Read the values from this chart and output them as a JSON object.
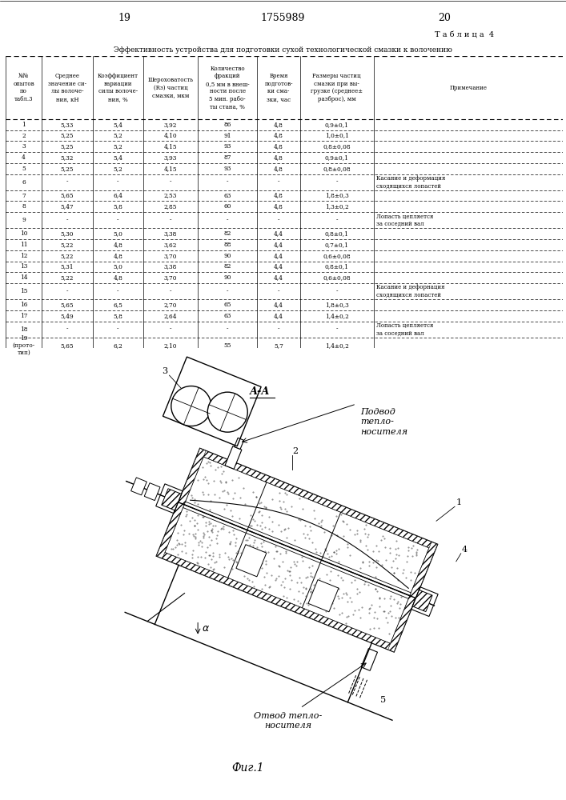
{
  "page_left": "19",
  "page_center": "1755989",
  "page_right": "20",
  "table_label": "Т а б л и ц а  4",
  "table_title": "Эффективность устройства для подготовки сухой технологической смазки к волочению",
  "col_headers": [
    "№№\nопытов\nпо\nтабл.3",
    "Среднее\nзначение си-\nлы волоче-\nния, кН",
    "Коэффициент\nвариации\nсилы волоче-\nния, %",
    "Шероховатость\n(Rз) частиц\nсмазки, мкм",
    "Количество\nфракций\n0,5 мм в внеш-\nности после\n5 мин. рабо-\nты стана, %",
    "Время\nподготов-\nки сма-\nзки, час",
    "Размеры частиц\nсмазки при вы-\nгрузке (среднее±\nразброс), мм",
    "Примечание"
  ],
  "rows": [
    [
      "1",
      "5,33",
      "5,4",
      "3,92",
      "86",
      "4,8",
      "0,9±0,1",
      ""
    ],
    [
      "2",
      "5,25",
      "5,2",
      "4,10",
      "91",
      "4,8",
      "1,0±0,1",
      ""
    ],
    [
      "3",
      "5,25",
      "5,2",
      "4,15",
      "93",
      "4,8",
      "0,8±0,08",
      ""
    ],
    [
      "4",
      "5,32",
      "5,4",
      "3,93",
      "87",
      "4,8",
      "0,9±0,1",
      ""
    ],
    [
      "5",
      "5,25",
      "5,2",
      "4,15",
      "93",
      "4,8",
      "0,8±0,08",
      ""
    ],
    [
      "6",
      "-",
      "-",
      "-",
      "-",
      "-",
      "-",
      "Касание и деформация\nсходящихся лопастей"
    ],
    [
      "7",
      "5,65",
      "6,4",
      "2,53",
      "63",
      "4,8",
      "1,8±0,3",
      ""
    ],
    [
      "8",
      "5,47",
      "5,8",
      "2,85",
      "60",
      "4,8",
      "1,3±0,2",
      ""
    ],
    [
      "9",
      "-",
      "-",
      "-",
      "-",
      "-",
      "-",
      "Лопасть цепляется\nза соседний вал"
    ],
    [
      "10",
      "5,30",
      "5,0",
      "3,38",
      "82",
      "4,4",
      "0,8±0,1",
      ""
    ],
    [
      "11",
      "5,22",
      "4,8",
      "3,62",
      "88",
      "4,4",
      "0,7±0,1",
      ""
    ],
    [
      "12",
      "5,22",
      "4,8",
      "3,70",
      "90",
      "4,4",
      "0,6±0,08",
      ""
    ],
    [
      "13",
      "5,31",
      "5,0",
      "3,38",
      "82",
      "4,4",
      "0,8±0,1",
      ""
    ],
    [
      "14",
      "5,22",
      "4,8",
      "3,70",
      "90",
      "4,4",
      "0,6±0,08",
      ""
    ],
    [
      "15",
      "-",
      "-",
      "-",
      "-",
      "-",
      "-",
      "Касание и дефорнация\nсходящихся лопастей"
    ],
    [
      "16",
      "5,65",
      "6,5",
      "2,70",
      "65",
      "4,4",
      "1,8±0,3",
      ""
    ],
    [
      "17",
      "5,49",
      "5,8",
      "2,64",
      "63",
      "4,4",
      "1,4±0,2",
      ""
    ],
    [
      "18",
      "-",
      "-",
      "-",
      "-",
      "-",
      "-",
      "Лопасть цепляется\nза соседний вал"
    ],
    [
      "19\n(прото-\nтип)",
      "5,65",
      "6,2",
      "2,10",
      "55",
      "5,7",
      "1,4±0,2",
      ""
    ]
  ]
}
